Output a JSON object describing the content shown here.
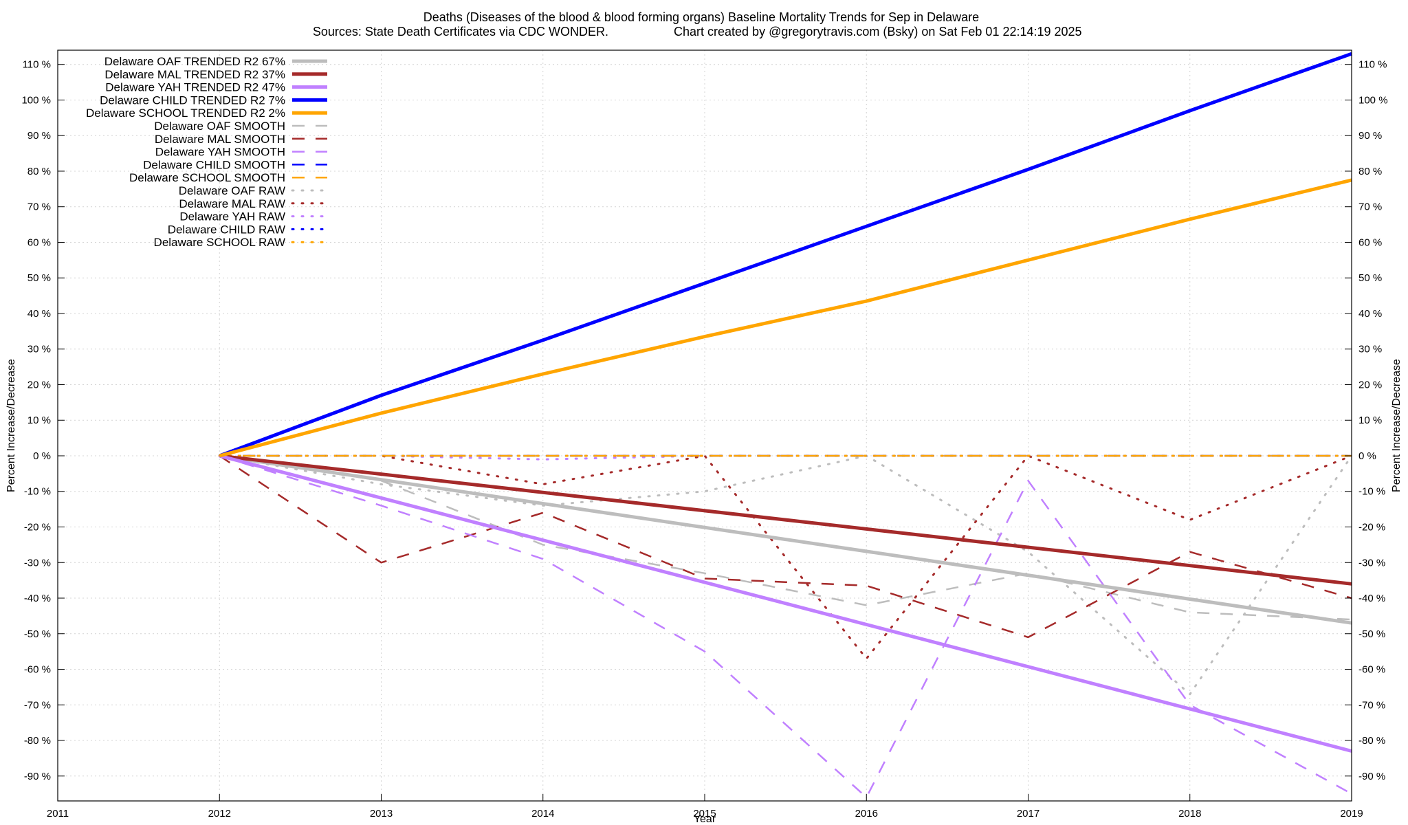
{
  "chart_data": {
    "type": "line",
    "title": "Deaths (Diseases of the blood & blood forming organs)  Baseline Mortality Trends for Sep in Delaware",
    "subtitle_left": "Sources: State Death Certificates via CDC WONDER.",
    "subtitle_right": "Chart created by @gregorytravis.com (Bsky) on Sat Feb 01 22:14:19 2025",
    "xlabel": "Year",
    "ylabel": "Percent Increase/Decrease",
    "ylabel_right": "Percent Increase/Decrease",
    "xlim": [
      2011,
      2019
    ],
    "ylim": [
      -97,
      114
    ],
    "x_ticks": [
      2011,
      2012,
      2013,
      2014,
      2015,
      2016,
      2017,
      2018,
      2019
    ],
    "y_ticks": [
      110,
      100,
      90,
      80,
      70,
      60,
      50,
      40,
      30,
      20,
      10,
      0,
      -10,
      -20,
      -30,
      -40,
      -50,
      -60,
      -70,
      -80,
      -90
    ],
    "y_tick_labels": [
      "110 %",
      "100 %",
      "90 %",
      "80 %",
      "70 %",
      "60 %",
      "50 %",
      "40 %",
      "30 %",
      "20 %",
      "10 %",
      "0 %",
      "-10 %",
      "-20 %",
      "-30 %",
      "-40 %",
      "-50 %",
      "-60 %",
      "-70 %",
      "-80 %",
      "-90 %"
    ],
    "grid": true,
    "legend_position": "top-left",
    "series": [
      {
        "name": "Delaware OAF TRENDED R2  67%",
        "color": "#bdbdbd",
        "style": "solid",
        "x": [
          2012,
          2019
        ],
        "y": [
          0,
          -47
        ]
      },
      {
        "name": "Delaware MAL TRENDED R2  37%",
        "color": "#a52a2a",
        "style": "solid",
        "x": [
          2012,
          2019
        ],
        "y": [
          0,
          -36
        ]
      },
      {
        "name": "Delaware YAH TRENDED R2  47%",
        "color": "#c080ff",
        "style": "solid",
        "x": [
          2012,
          2019
        ],
        "y": [
          0,
          -83
        ]
      },
      {
        "name": "Delaware CHILD TRENDED R2  7%",
        "color": "#0000ff",
        "style": "solid",
        "x": [
          2012,
          2013,
          2014,
          2015,
          2016,
          2017,
          2018,
          2019
        ],
        "y": [
          0,
          17,
          32.5,
          48.5,
          64.5,
          80.5,
          97,
          113
        ]
      },
      {
        "name": "Delaware SCHOOL TRENDED R2  2%",
        "color": "#ffa500",
        "style": "solid",
        "x": [
          2012,
          2013,
          2014,
          2015,
          2016,
          2017,
          2018,
          2019
        ],
        "y": [
          0,
          12,
          23,
          33.5,
          43.5,
          55,
          66.5,
          77.5
        ]
      },
      {
        "name": "Delaware OAF SMOOTH",
        "color": "#bdbdbd",
        "style": "dashed",
        "x": [
          2012,
          2013,
          2014,
          2015,
          2016,
          2017,
          2018,
          2019
        ],
        "y": [
          0,
          -7,
          -25,
          -33,
          -42,
          -33,
          -44,
          -46
        ]
      },
      {
        "name": "Delaware MAL SMOOTH",
        "color": "#a52a2a",
        "style": "dashed",
        "x": [
          2012,
          2013,
          2014,
          2015,
          2015.5,
          2016,
          2017,
          2018,
          2019
        ],
        "y": [
          0,
          -30,
          -16,
          -34.5,
          -35.5,
          -36.5,
          -51,
          -27,
          -40
        ]
      },
      {
        "name": "Delaware YAH SMOOTH",
        "color": "#c080ff",
        "style": "dashed",
        "x": [
          2012,
          2013,
          2014,
          2015,
          2016,
          2017,
          2018,
          2019
        ],
        "y": [
          0,
          -14,
          -29,
          -55,
          -96,
          -7,
          -70,
          -95
        ]
      },
      {
        "name": "Delaware CHILD SMOOTH",
        "color": "#0000ff",
        "style": "dashed",
        "x": [
          2012,
          2019
        ],
        "y": [
          0,
          0
        ]
      },
      {
        "name": "Delaware SCHOOL SMOOTH",
        "color": "#ffa500",
        "style": "dashed",
        "x": [
          2012,
          2019
        ],
        "y": [
          0,
          0
        ]
      },
      {
        "name": "Delaware OAF RAW",
        "color": "#bdbdbd",
        "style": "dotted",
        "x": [
          2012,
          2013,
          2014,
          2015,
          2016,
          2017,
          2018,
          2019
        ],
        "y": [
          0,
          -8,
          -14,
          -10,
          0,
          -27,
          -67,
          0
        ]
      },
      {
        "name": "Delaware MAL RAW",
        "color": "#a52a2a",
        "style": "dotted",
        "x": [
          2012,
          2013,
          2014,
          2015,
          2016,
          2017,
          2018,
          2019
        ],
        "y": [
          0,
          0,
          -8,
          0,
          -57,
          0,
          -18,
          0
        ]
      },
      {
        "name": "Delaware YAH RAW",
        "color": "#c080ff",
        "style": "dotted",
        "x": [
          2012,
          2013,
          2014,
          2015,
          2019
        ],
        "y": [
          0,
          0,
          -1,
          0,
          0
        ]
      },
      {
        "name": "Delaware CHILD RAW",
        "color": "#0000ff",
        "style": "dotted",
        "x": [
          2012,
          2019
        ],
        "y": [
          0,
          0
        ]
      },
      {
        "name": "Delaware SCHOOL RAW",
        "color": "#ffa500",
        "style": "dotted",
        "x": [
          2012,
          2019
        ],
        "y": [
          0,
          0
        ]
      }
    ]
  }
}
